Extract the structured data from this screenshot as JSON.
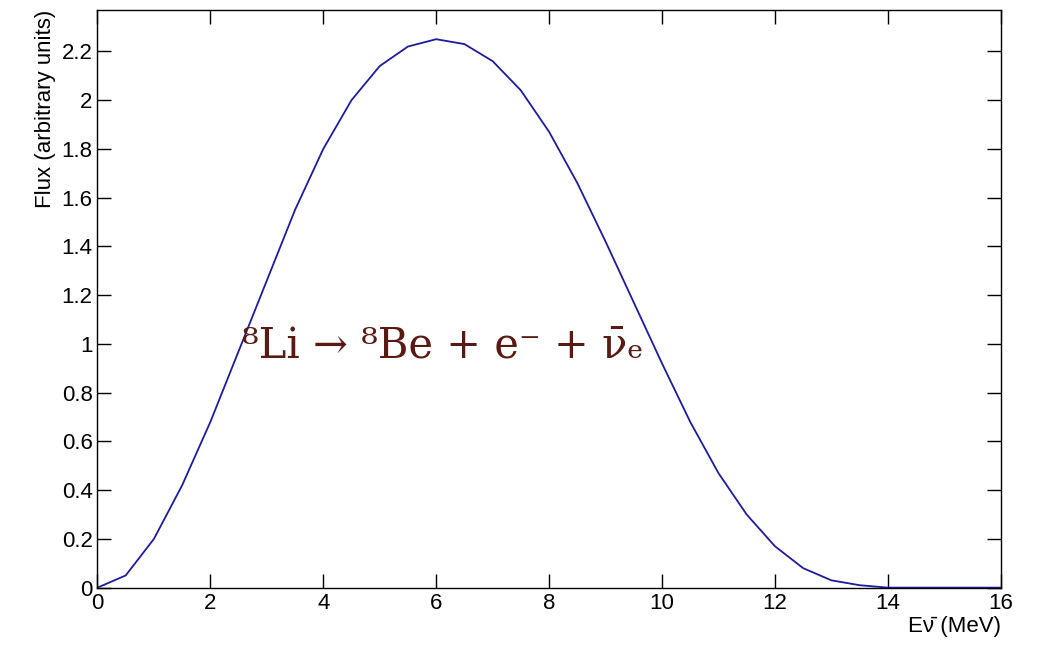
{
  "chart_data": {
    "type": "line",
    "x_label": "Eν̄ (MeV)",
    "y_label": "Flux (arbitrary units)",
    "annotation": "⁸Li → ⁸Be + e⁻ + ν̄ₑ",
    "x": [
      0,
      0.5,
      1,
      1.5,
      2,
      2.5,
      3,
      3.5,
      4,
      4.5,
      5,
      5.5,
      6,
      6.5,
      7,
      7.5,
      8,
      8.5,
      9,
      9.5,
      10,
      10.5,
      11,
      11.5,
      12,
      12.5,
      13,
      13.5,
      14,
      14.5,
      15,
      15.5,
      16
    ],
    "values": [
      0,
      0.05,
      0.2,
      0.42,
      0.68,
      0.97,
      1.26,
      1.55,
      1.8,
      2.0,
      2.14,
      2.22,
      2.25,
      2.23,
      2.16,
      2.04,
      1.87,
      1.66,
      1.42,
      1.17,
      0.92,
      0.68,
      0.47,
      0.3,
      0.17,
      0.08,
      0.03,
      0.01,
      0,
      0,
      0,
      0,
      0
    ],
    "color": "#1c1c9c",
    "xlim": [
      0,
      16
    ],
    "ylim": [
      0,
      2.37
    ],
    "xticks": [
      0,
      2,
      4,
      6,
      8,
      10,
      12,
      14,
      16
    ],
    "yticks": [
      0,
      0.2,
      0.4,
      0.6,
      0.8,
      1,
      1.2,
      1.4,
      1.6,
      1.8,
      2,
      2.2
    ],
    "grid": false
  }
}
